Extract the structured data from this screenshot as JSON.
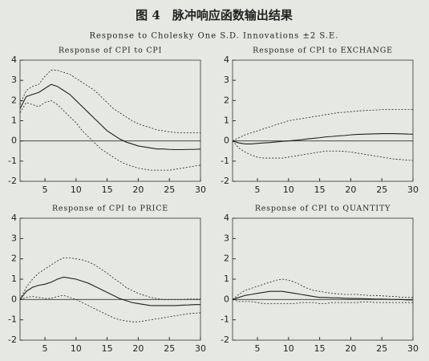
{
  "figure_title": "图 4　脉冲响应函数输出结果",
  "subtitle": "Response to Cholesky One S.D. Innovations ±2 S.E.",
  "chart_data": [
    {
      "type": "line",
      "title": "Response of CPI to CPI",
      "x": [
        1,
        2,
        3,
        4,
        5,
        6,
        7,
        8,
        9,
        10,
        11,
        12,
        13,
        14,
        15,
        16,
        17,
        18,
        19,
        20,
        21,
        22,
        23,
        24,
        25,
        26,
        27,
        28,
        29,
        30
      ],
      "xlim": [
        1,
        30
      ],
      "xticks": [
        5,
        10,
        15,
        20,
        25,
        30
      ],
      "ylim": [
        -2,
        4
      ],
      "yticks": [
        -2,
        -1,
        0,
        1,
        2,
        3,
        4
      ],
      "series": [
        {
          "color": "#222222",
          "dashed": false,
          "values": [
            1.6,
            2.2,
            2.3,
            2.4,
            2.6,
            2.8,
            2.7,
            2.5,
            2.3,
            2.0,
            1.7,
            1.4,
            1.1,
            0.8,
            0.5,
            0.3,
            0.1,
            -0.05,
            -0.15,
            -0.25,
            -0.3,
            -0.35,
            -0.4,
            -0.4,
            -0.42,
            -0.43,
            -0.43,
            -0.42,
            -0.42,
            -0.4
          ]
        },
        {
          "color": "#222222",
          "dashed": true,
          "values": [
            1.8,
            2.5,
            2.7,
            2.8,
            3.2,
            3.5,
            3.5,
            3.4,
            3.3,
            3.1,
            2.9,
            2.7,
            2.5,
            2.2,
            1.9,
            1.6,
            1.4,
            1.2,
            1.0,
            0.85,
            0.75,
            0.65,
            0.55,
            0.5,
            0.45,
            0.42,
            0.4,
            0.4,
            0.4,
            0.4
          ]
        },
        {
          "color": "#222222",
          "dashed": true,
          "values": [
            1.4,
            1.9,
            1.8,
            1.7,
            1.9,
            2.0,
            1.8,
            1.5,
            1.2,
            0.9,
            0.5,
            0.2,
            -0.1,
            -0.4,
            -0.6,
            -0.8,
            -1.0,
            -1.15,
            -1.25,
            -1.35,
            -1.4,
            -1.45,
            -1.45,
            -1.45,
            -1.45,
            -1.4,
            -1.35,
            -1.3,
            -1.25,
            -1.2
          ]
        }
      ]
    },
    {
      "type": "line",
      "title": "Response of CPI to EXCHANGE",
      "x": [
        1,
        2,
        3,
        4,
        5,
        6,
        7,
        8,
        9,
        10,
        11,
        12,
        13,
        14,
        15,
        16,
        17,
        18,
        19,
        20,
        21,
        22,
        23,
        24,
        25,
        26,
        27,
        28,
        29,
        30
      ],
      "xlim": [
        1,
        30
      ],
      "xticks": [
        5,
        10,
        15,
        20,
        25,
        30
      ],
      "ylim": [
        -2,
        4
      ],
      "yticks": [
        -2,
        -1,
        0,
        1,
        2,
        3,
        4
      ],
      "series": [
        {
          "color": "#222222",
          "dashed": false,
          "values": [
            0,
            -0.1,
            -0.15,
            -0.15,
            -0.12,
            -0.1,
            -0.08,
            -0.05,
            -0.02,
            0,
            0.03,
            0.06,
            0.1,
            0.13,
            0.16,
            0.2,
            0.22,
            0.25,
            0.27,
            0.3,
            0.32,
            0.33,
            0.34,
            0.35,
            0.36,
            0.36,
            0.36,
            0.35,
            0.34,
            0.33
          ]
        },
        {
          "color": "#222222",
          "dashed": true,
          "values": [
            0,
            0.15,
            0.3,
            0.4,
            0.5,
            0.6,
            0.7,
            0.8,
            0.9,
            1.0,
            1.05,
            1.1,
            1.15,
            1.2,
            1.25,
            1.3,
            1.35,
            1.4,
            1.42,
            1.45,
            1.48,
            1.5,
            1.52,
            1.53,
            1.55,
            1.55,
            1.56,
            1.56,
            1.55,
            1.55
          ]
        },
        {
          "color": "#222222",
          "dashed": true,
          "values": [
            0,
            -0.35,
            -0.55,
            -0.7,
            -0.8,
            -0.85,
            -0.85,
            -0.85,
            -0.85,
            -0.8,
            -0.75,
            -0.7,
            -0.65,
            -0.6,
            -0.55,
            -0.5,
            -0.5,
            -0.5,
            -0.52,
            -0.55,
            -0.6,
            -0.65,
            -0.7,
            -0.75,
            -0.8,
            -0.85,
            -0.9,
            -0.92,
            -0.95,
            -0.97
          ]
        }
      ]
    },
    {
      "type": "line",
      "title": "Response of CPI to PRICE",
      "x": [
        1,
        2,
        3,
        4,
        5,
        6,
        7,
        8,
        9,
        10,
        11,
        12,
        13,
        14,
        15,
        16,
        17,
        18,
        19,
        20,
        21,
        22,
        23,
        24,
        25,
        26,
        27,
        28,
        29,
        30
      ],
      "xlim": [
        1,
        30
      ],
      "xticks": [
        5,
        10,
        15,
        20,
        25,
        30
      ],
      "ylim": [
        -2,
        4
      ],
      "yticks": [
        -2,
        -1,
        0,
        1,
        2,
        3,
        4
      ],
      "series": [
        {
          "color": "#222222",
          "dashed": false,
          "values": [
            0,
            0.4,
            0.6,
            0.7,
            0.75,
            0.85,
            1.0,
            1.1,
            1.05,
            1.0,
            0.9,
            0.8,
            0.65,
            0.5,
            0.35,
            0.2,
            0.05,
            -0.05,
            -0.15,
            -0.2,
            -0.25,
            -0.3,
            -0.3,
            -0.3,
            -0.3,
            -0.3,
            -0.28,
            -0.27,
            -0.25,
            -0.25
          ]
        },
        {
          "color": "#222222",
          "dashed": true,
          "values": [
            0,
            0.6,
            1.0,
            1.3,
            1.5,
            1.7,
            1.9,
            2.05,
            2.05,
            2.0,
            1.95,
            1.85,
            1.7,
            1.5,
            1.3,
            1.05,
            0.85,
            0.6,
            0.45,
            0.3,
            0.2,
            0.1,
            0.05,
            0.0,
            0.0,
            0.0,
            0.0,
            0.02,
            0.02,
            0.03
          ]
        },
        {
          "color": "#222222",
          "dashed": true,
          "values": [
            0,
            0.1,
            0.15,
            0.1,
            0.05,
            0.05,
            0.15,
            0.2,
            0.1,
            0,
            -0.15,
            -0.3,
            -0.45,
            -0.6,
            -0.75,
            -0.9,
            -1.0,
            -1.05,
            -1.1,
            -1.1,
            -1.05,
            -1.0,
            -0.95,
            -0.9,
            -0.85,
            -0.8,
            -0.75,
            -0.7,
            -0.68,
            -0.65
          ]
        }
      ]
    },
    {
      "type": "line",
      "title": "Response of CPI to QUANTITY",
      "x": [
        1,
        2,
        3,
        4,
        5,
        6,
        7,
        8,
        9,
        10,
        11,
        12,
        13,
        14,
        15,
        16,
        17,
        18,
        19,
        20,
        21,
        22,
        23,
        24,
        25,
        26,
        27,
        28,
        29,
        30
      ],
      "xlim": [
        1,
        30
      ],
      "xticks": [
        5,
        10,
        15,
        20,
        25,
        30
      ],
      "ylim": [
        -2,
        4
      ],
      "yticks": [
        -2,
        -1,
        0,
        1,
        2,
        3,
        4
      ],
      "series": [
        {
          "color": "#222222",
          "dashed": false,
          "values": [
            0,
            0.1,
            0.2,
            0.25,
            0.3,
            0.35,
            0.4,
            0.4,
            0.4,
            0.35,
            0.3,
            0.25,
            0.2,
            0.15,
            0.1,
            0.1,
            0.08,
            0.08,
            0.06,
            0.05,
            0.05,
            0.04,
            0.03,
            0.02,
            0.02,
            0.01,
            0.0,
            0.0,
            -0.02,
            -0.02
          ]
        },
        {
          "color": "#222222",
          "dashed": true,
          "values": [
            0,
            0.25,
            0.45,
            0.55,
            0.65,
            0.75,
            0.85,
            0.95,
            1.0,
            0.95,
            0.85,
            0.7,
            0.55,
            0.45,
            0.4,
            0.35,
            0.3,
            0.28,
            0.25,
            0.25,
            0.25,
            0.22,
            0.2,
            0.2,
            0.18,
            0.16,
            0.15,
            0.12,
            0.1,
            0.1
          ]
        },
        {
          "color": "#222222",
          "dashed": true,
          "values": [
            0,
            -0.1,
            -0.1,
            -0.1,
            -0.15,
            -0.2,
            -0.2,
            -0.2,
            -0.2,
            -0.2,
            -0.2,
            -0.15,
            -0.15,
            -0.15,
            -0.2,
            -0.2,
            -0.15,
            -0.15,
            -0.15,
            -0.15,
            -0.15,
            -0.12,
            -0.12,
            -0.15,
            -0.15,
            -0.15,
            -0.15,
            -0.15,
            -0.15,
            -0.15
          ]
        }
      ]
    }
  ]
}
